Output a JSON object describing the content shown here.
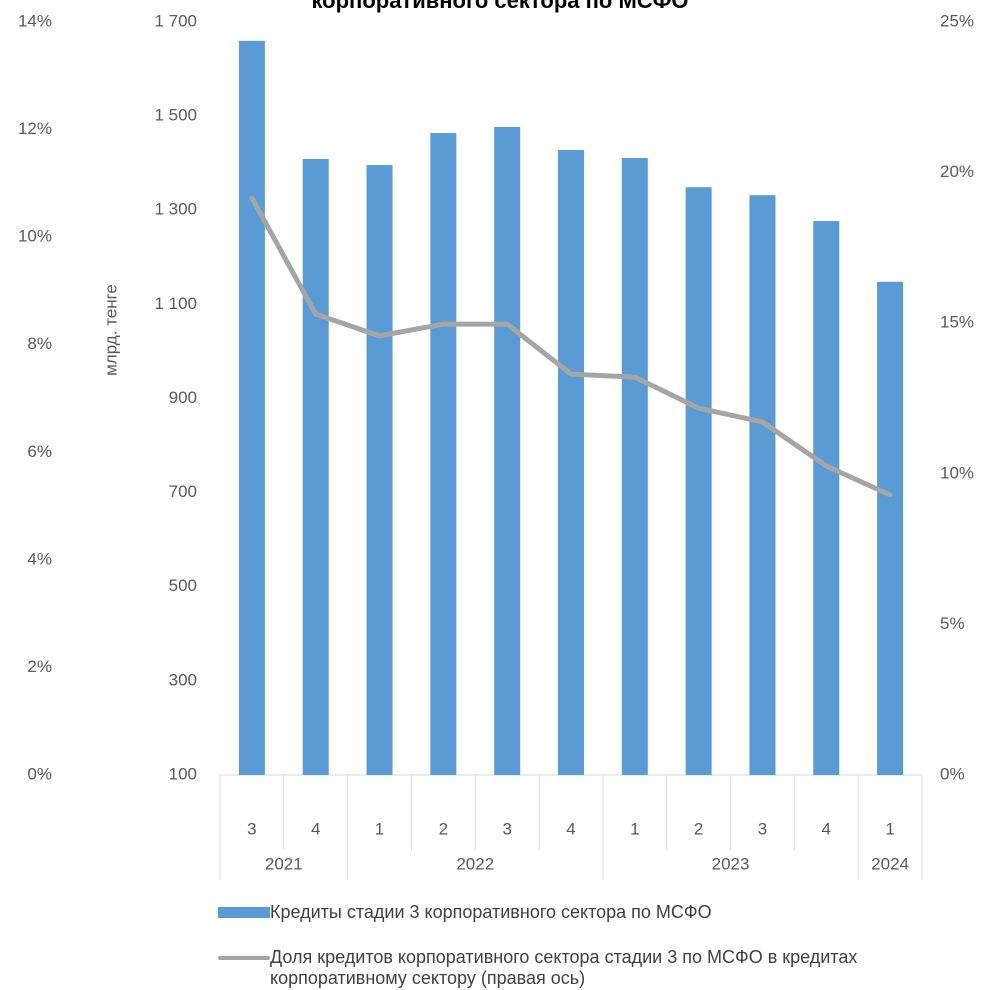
{
  "chart_data": {
    "type": "bar",
    "title": "корпоративного сектора по МСФО",
    "y_label": "млрд. тенге",
    "categories": [
      "3",
      "4",
      "1",
      "2",
      "3",
      "4",
      "1",
      "2",
      "3",
      "4",
      "1"
    ],
    "category_years": [
      "2021",
      null,
      "2022",
      null,
      null,
      null,
      "2023",
      null,
      null,
      null,
      "2024"
    ],
    "ylim": [
      100,
      1700
    ],
    "yticks": [
      100,
      300,
      500,
      700,
      900,
      {
        "value": 1100,
        "label": "1 100"
      },
      {
        "value": 1300,
        "label": "1 300"
      },
      {
        "value": 1500,
        "label": "1 500"
      },
      {
        "value": 1700,
        "label": "1 700"
      }
    ],
    "y2lim": [
      0,
      25
    ],
    "y2ticks": [
      {
        "value": 0,
        "label": "0%"
      },
      {
        "value": 5,
        "label": "5%"
      },
      {
        "value": 10,
        "label": "10%"
      },
      {
        "value": 15,
        "label": "15%"
      },
      {
        "value": 20,
        "label": "20%"
      },
      {
        "value": 25,
        "label": "25%"
      }
    ],
    "y3lim": [
      0,
      14
    ],
    "y3ticks": [
      {
        "value": 0,
        "label": "0%"
      },
      {
        "value": 2,
        "label": "2%"
      },
      {
        "value": 4,
        "label": "4%"
      },
      {
        "value": 6,
        "label": "6%"
      },
      {
        "value": 8,
        "label": "8%"
      },
      {
        "value": 10,
        "label": "10%"
      },
      {
        "value": 12,
        "label": "12%"
      },
      {
        "value": 14,
        "label": "14%"
      }
    ],
    "series": [
      {
        "name": "Кредиты стадии 3 корпоративного сектора по МСФО",
        "type": "bar",
        "color": "#5b9bd5",
        "values": [
          1660,
          1409,
          1396,
          1464,
          1477,
          1428,
          1411,
          1349,
          1332,
          1277,
          1148
        ]
      },
      {
        "name": "Доля кредитов корпоративного сектора стадии 3 по МСФО  в кредитах корпоративному сектору (правая ось)",
        "type": "line",
        "axis": "y2",
        "color": "#a5a5a5",
        "values": [
          19.16,
          15.3,
          14.58,
          14.97,
          14.97,
          13.31,
          13.21,
          12.18,
          11.72,
          10.26,
          9.3
        ]
      }
    ]
  }
}
